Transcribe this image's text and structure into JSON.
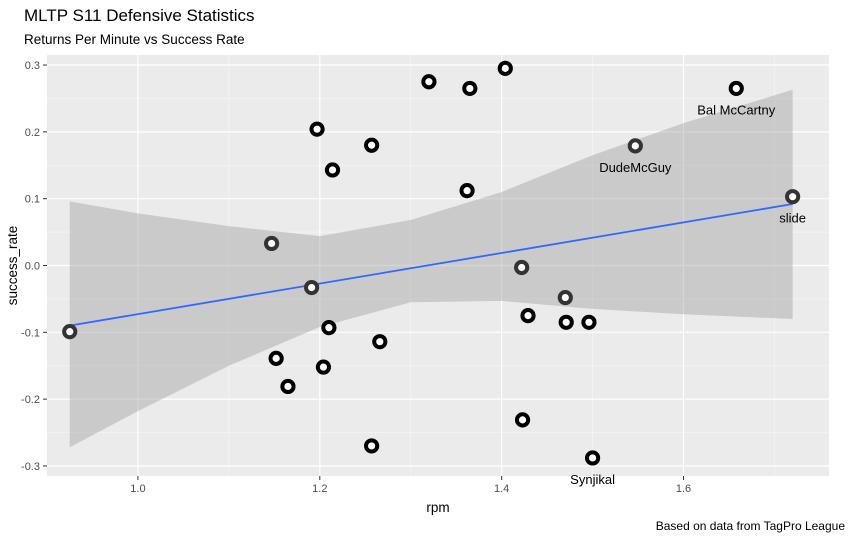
{
  "title": "MLTP S11 Defensive Statistics",
  "subtitle": "Returns Per Minute vs Success Rate",
  "caption": "Based on data from TagPro League",
  "chart_data": {
    "type": "scatter",
    "title": "MLTP S11 Defensive Statistics",
    "subtitle": "Returns Per Minute vs Success Rate",
    "xlabel": "rpm",
    "ylabel": "success_rate",
    "xlim": [
      0.9,
      1.76
    ],
    "ylim": [
      -0.315,
      0.315
    ],
    "x_ticks": [
      1.0,
      1.2,
      1.4,
      1.6
    ],
    "x_tick_labels": [
      "1.0",
      "1.2",
      "1.4",
      "1.6"
    ],
    "y_ticks": [
      -0.3,
      -0.2,
      -0.1,
      0.0,
      0.1,
      0.2,
      0.3
    ],
    "y_tick_labels": [
      "-0.3",
      "-0.2",
      "-0.1",
      "0.0",
      "0.1",
      "0.2",
      "0.3"
    ],
    "grid": true,
    "points": [
      {
        "x": 0.925,
        "y": -0.099,
        "label": ""
      },
      {
        "x": 1.147,
        "y": 0.033,
        "label": ""
      },
      {
        "x": 1.152,
        "y": -0.139,
        "label": ""
      },
      {
        "x": 1.165,
        "y": -0.181,
        "label": ""
      },
      {
        "x": 1.191,
        "y": -0.033,
        "label": ""
      },
      {
        "x": 1.197,
        "y": 0.204,
        "label": ""
      },
      {
        "x": 1.204,
        "y": -0.152,
        "label": ""
      },
      {
        "x": 1.21,
        "y": -0.093,
        "label": ""
      },
      {
        "x": 1.214,
        "y": 0.143,
        "label": ""
      },
      {
        "x": 1.257,
        "y": 0.18,
        "label": ""
      },
      {
        "x": 1.257,
        "y": -0.27,
        "label": ""
      },
      {
        "x": 1.266,
        "y": -0.114,
        "label": ""
      },
      {
        "x": 1.32,
        "y": 0.275,
        "label": ""
      },
      {
        "x": 1.362,
        "y": 0.112,
        "label": ""
      },
      {
        "x": 1.365,
        "y": 0.265,
        "label": ""
      },
      {
        "x": 1.404,
        "y": 0.295,
        "label": ""
      },
      {
        "x": 1.422,
        "y": -0.003,
        "label": ""
      },
      {
        "x": 1.423,
        "y": -0.231,
        "label": ""
      },
      {
        "x": 1.429,
        "y": -0.075,
        "label": ""
      },
      {
        "x": 1.47,
        "y": -0.048,
        "label": ""
      },
      {
        "x": 1.471,
        "y": -0.085,
        "label": ""
      },
      {
        "x": 1.496,
        "y": -0.085,
        "label": ""
      },
      {
        "x": 1.5,
        "y": -0.288,
        "label": "Synjikal"
      },
      {
        "x": 1.547,
        "y": 0.179,
        "label": "DudeMcGuy"
      },
      {
        "x": 1.658,
        "y": 0.265,
        "label": "Bal McCartny"
      },
      {
        "x": 1.72,
        "y": 0.103,
        "label": "slide"
      }
    ],
    "trend": {
      "type": "linear",
      "x": [
        0.925,
        1.72
      ],
      "y": [
        -0.09,
        0.092
      ],
      "color": "#3366ff"
    },
    "band": {
      "x": [
        0.925,
        1.0,
        1.1,
        1.2,
        1.3,
        1.4,
        1.5,
        1.6,
        1.72
      ],
      "lower": [
        -0.272,
        -0.218,
        -0.15,
        -0.092,
        -0.055,
        -0.053,
        -0.065,
        -0.073,
        -0.08
      ],
      "upper": [
        0.096,
        0.078,
        0.059,
        0.044,
        0.068,
        0.11,
        0.165,
        0.213,
        0.263
      ],
      "color": "#999999"
    },
    "colors": {
      "panel": "#ebebeb",
      "grid_major": "#ffffff",
      "point_dark": "#000000",
      "point_light": "#333333",
      "point_fill": "#ffffff"
    }
  }
}
